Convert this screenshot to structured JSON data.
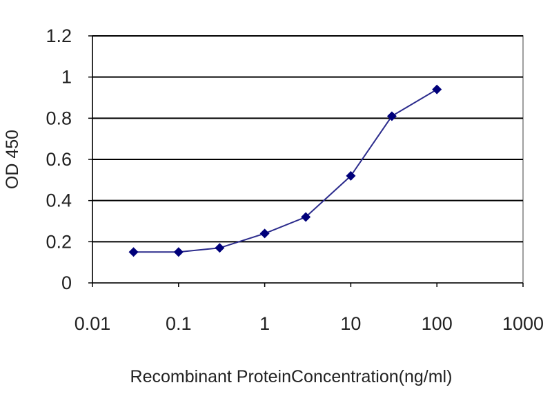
{
  "chart_data": {
    "type": "line",
    "title": "",
    "xlabel": "Recombinant ProteinConcentration(ng/ml)",
    "ylabel": "OD 450",
    "x_scale": "log",
    "xlim": [
      0.01,
      1000
    ],
    "ylim": [
      0,
      1.2
    ],
    "x_ticks": [
      "0.01",
      "0.1",
      "1",
      "10",
      "100",
      "1000"
    ],
    "y_ticks": [
      "0",
      "0.2",
      "0.4",
      "0.6",
      "0.8",
      "1",
      "1.2"
    ],
    "grid": "horizontal",
    "legend": "none",
    "series": [
      {
        "x": [
          0.03,
          0.1,
          0.3,
          1,
          3,
          10,
          30,
          100
        ],
        "y": [
          0.15,
          0.15,
          0.17,
          0.24,
          0.32,
          0.52,
          0.81,
          0.94
        ]
      }
    ],
    "colors": {
      "line": "#2b2b8c",
      "marker": "#00007a",
      "grid": "#000000",
      "plot_background": "#ffffff"
    }
  }
}
